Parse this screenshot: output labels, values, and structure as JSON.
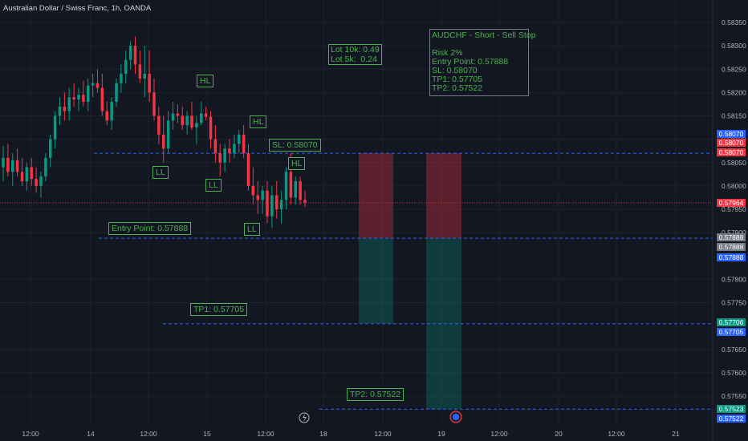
{
  "header": {
    "title": "Australian Dollar / Swiss Franc, 1h, OANDA"
  },
  "colors": {
    "bull": "#089981",
    "bear": "#f23645",
    "label_green": "#4caf50",
    "line_blue": "#2962ff",
    "background": "#131722"
  },
  "axis": {
    "y_ticks": [
      "0.58350",
      "0.58300",
      "0.58250",
      "0.58200",
      "0.58150",
      "0.58100",
      "0.58050",
      "0.58000",
      "0.57950",
      "0.57900",
      "0.57800",
      "0.57750",
      "0.57650",
      "0.57600",
      "0.57550"
    ],
    "x_ticks": [
      "12:00",
      "14",
      "12:00",
      "15",
      "12:00",
      "18",
      "12:00",
      "19",
      "12:00",
      "20",
      "12:00",
      "21"
    ]
  },
  "price_labels": [
    {
      "text": "0.58070",
      "bg": "#2962ff"
    },
    {
      "text": "0.58070",
      "bg": "#f23645"
    },
    {
      "text": "0.58070",
      "bg": "#f23645"
    },
    {
      "text": "0.57964",
      "bg": "#f23645"
    },
    {
      "text": "0.57888",
      "bg": "#787b86"
    },
    {
      "text": "0.57888",
      "bg": "#787b86"
    },
    {
      "text": "0.57888",
      "bg": "#2962ff"
    },
    {
      "text": "0.57706",
      "bg": "#089981"
    },
    {
      "text": "0.57705",
      "bg": "#2962ff"
    },
    {
      "text": "0.57523",
      "bg": "#089981"
    },
    {
      "text": "0.57522",
      "bg": "#2962ff"
    }
  ],
  "annotations": {
    "info_lines": [
      "AUDCHF - Short - Sell Stop",
      "",
      "Risk 2%",
      "Entry Point: 0.57888",
      "SL: 0.58070",
      "TP1: 0.57705",
      "TP2: 0.57522"
    ],
    "lot_lines": [
      "Lot 10k: 0.49",
      "Lot 5k:  0.24"
    ],
    "sl_label": "SL: 0.58070",
    "entry_label": "Entry Point: 0.57888",
    "tp1_label": "TP1: 0.57705",
    "tp2_label": "TP2: 0.57522",
    "swings": [
      "HL",
      "HL",
      "HL",
      "LL",
      "LL",
      "LL"
    ]
  },
  "chart_data": {
    "type": "candlestick",
    "symbol": "AUDCHF",
    "timeframe": "1h",
    "levels": {
      "stop_loss": 0.5807,
      "entry": 0.57888,
      "tp1": 0.57705,
      "tp2": 0.57522,
      "last": 0.57964
    },
    "ylim": [
      0.5749,
      0.5838
    ],
    "ohlc": [
      [
        0.5804,
        0.58085,
        0.5801,
        0.5806
      ],
      [
        0.5806,
        0.5809,
        0.5802,
        0.5803
      ],
      [
        0.5803,
        0.5807,
        0.58,
        0.58055
      ],
      [
        0.58055,
        0.5808,
        0.5802,
        0.5803
      ],
      [
        0.5803,
        0.5806,
        0.58,
        0.5801
      ],
      [
        0.5801,
        0.5805,
        0.5799,
        0.5804
      ],
      [
        0.5804,
        0.5806,
        0.58,
        0.58015
      ],
      [
        0.58015,
        0.5804,
        0.57985,
        0.58
      ],
      [
        0.58,
        0.5803,
        0.57975,
        0.5802
      ],
      [
        0.5802,
        0.5807,
        0.5801,
        0.5806
      ],
      [
        0.5806,
        0.5811,
        0.5804,
        0.581
      ],
      [
        0.581,
        0.5816,
        0.5808,
        0.5815
      ],
      [
        0.5815,
        0.5819,
        0.5813,
        0.5817
      ],
      [
        0.5817,
        0.582,
        0.5814,
        0.5816
      ],
      [
        0.5816,
        0.5821,
        0.5814,
        0.5819
      ],
      [
        0.5819,
        0.5822,
        0.5817,
        0.58185
      ],
      [
        0.58185,
        0.5821,
        0.5816,
        0.58195
      ],
      [
        0.58195,
        0.58225,
        0.5817,
        0.5818
      ],
      [
        0.5818,
        0.5823,
        0.5816,
        0.58215
      ],
      [
        0.58215,
        0.5824,
        0.5819,
        0.5822
      ],
      [
        0.5822,
        0.5825,
        0.582,
        0.5821
      ],
      [
        0.5821,
        0.5824,
        0.5815,
        0.5816
      ],
      [
        0.5816,
        0.5818,
        0.5813,
        0.5814
      ],
      [
        0.5814,
        0.5819,
        0.5812,
        0.5818
      ],
      [
        0.5818,
        0.5823,
        0.5817,
        0.5822
      ],
      [
        0.5822,
        0.5826,
        0.582,
        0.5824
      ],
      [
        0.5824,
        0.5829,
        0.5822,
        0.5827
      ],
      [
        0.5827,
        0.5831,
        0.5825,
        0.583
      ],
      [
        0.583,
        0.5832,
        0.5824,
        0.5826
      ],
      [
        0.5826,
        0.5829,
        0.5822,
        0.5823
      ],
      [
        0.5823,
        0.583,
        0.5819,
        0.5824
      ],
      [
        0.5824,
        0.5829,
        0.5818,
        0.582
      ],
      [
        0.582,
        0.5823,
        0.5814,
        0.5815
      ],
      [
        0.5815,
        0.5817,
        0.5809,
        0.5811
      ],
      [
        0.5811,
        0.5815,
        0.5805,
        0.5808
      ],
      [
        0.5808,
        0.5816,
        0.5807,
        0.5814
      ],
      [
        0.5814,
        0.5818,
        0.5812,
        0.58155
      ],
      [
        0.58155,
        0.58175,
        0.58135,
        0.5815
      ],
      [
        0.5815,
        0.5817,
        0.5812,
        0.5813
      ],
      [
        0.5813,
        0.5816,
        0.5811,
        0.5815
      ],
      [
        0.5815,
        0.5818,
        0.5812,
        0.58125
      ],
      [
        0.58125,
        0.5815,
        0.5809,
        0.58135
      ],
      [
        0.58135,
        0.5818,
        0.5813,
        0.58155
      ],
      [
        0.58155,
        0.5817,
        0.5814,
        0.58148
      ],
      [
        0.58148,
        0.5816,
        0.5808,
        0.581
      ],
      [
        0.581,
        0.5813,
        0.5805,
        0.5807
      ],
      [
        0.5807,
        0.5809,
        0.5802,
        0.5805
      ],
      [
        0.5805,
        0.5809,
        0.5803,
        0.5808
      ],
      [
        0.5808,
        0.581,
        0.5805,
        0.5807
      ],
      [
        0.5807,
        0.5811,
        0.5806,
        0.5809
      ],
      [
        0.5809,
        0.5812,
        0.5807,
        0.5811
      ],
      [
        0.5811,
        0.5813,
        0.5806,
        0.5807
      ],
      [
        0.5807,
        0.5809,
        0.5799,
        0.58
      ],
      [
        0.58,
        0.5804,
        0.5796,
        0.5798
      ],
      [
        0.5798,
        0.5801,
        0.5794,
        0.5797
      ],
      [
        0.5797,
        0.58,
        0.5794,
        0.5799
      ],
      [
        0.5799,
        0.5801,
        0.5792,
        0.57935
      ],
      [
        0.57935,
        0.58,
        0.5791,
        0.5798
      ],
      [
        0.5798,
        0.5801,
        0.5793,
        0.5795
      ],
      [
        0.5795,
        0.5799,
        0.5792,
        0.5797
      ],
      [
        0.5797,
        0.5804,
        0.5795,
        0.5803
      ],
      [
        0.5803,
        0.5807,
        0.5796,
        0.57975
      ],
      [
        0.57975,
        0.5802,
        0.5796,
        0.5801
      ],
      [
        0.5801,
        0.5802,
        0.5796,
        0.5797
      ],
      [
        0.5797,
        0.5799,
        0.57955,
        0.57964
      ]
    ]
  }
}
